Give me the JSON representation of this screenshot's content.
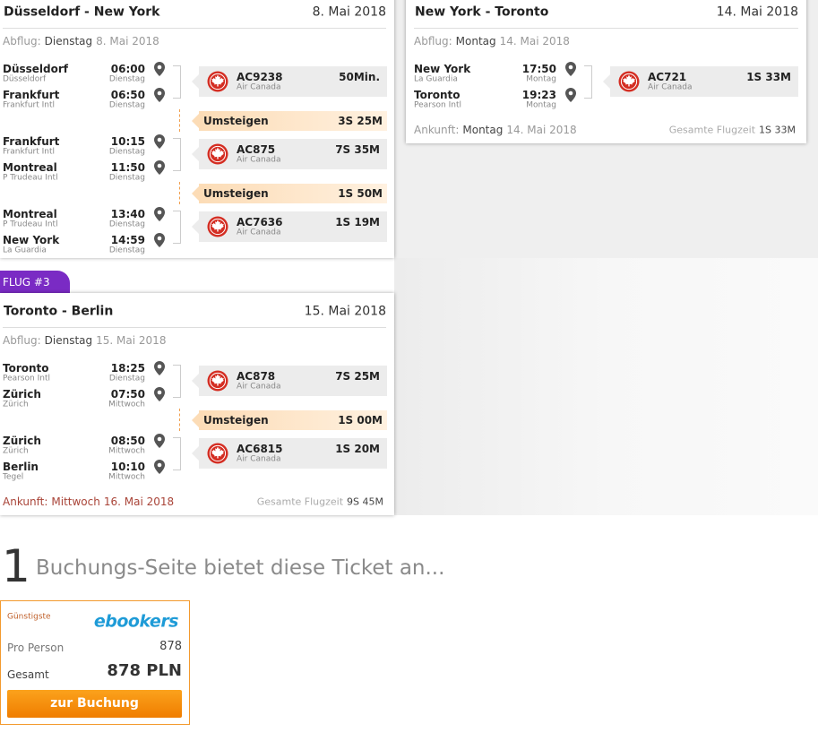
{
  "flights": [
    {
      "title": "Düsseldorf - New York",
      "date": "8. Mai 2018",
      "departure": {
        "label": "Abflug:",
        "day": "Dienstag",
        "date": "8. Mai 2018"
      },
      "legs": [
        {
          "from": {
            "city": "Düsseldorf",
            "airport": "Düsseldorf",
            "time": "06:00",
            "day": "Dienstag"
          },
          "to": {
            "city": "Frankfurt",
            "airport": "Frankfurt Intl",
            "time": "06:50",
            "day": "Dienstag"
          },
          "flight": {
            "code": "AC9238",
            "airline": "Air Canada",
            "duration": "50Min."
          }
        },
        {
          "from": {
            "city": "Frankfurt",
            "airport": "Frankfurt Intl",
            "time": "10:15",
            "day": "Dienstag"
          },
          "to": {
            "city": "Montreal",
            "airport": "P Trudeau Intl",
            "time": "11:50",
            "day": "Dienstag"
          },
          "flight": {
            "code": "AC875",
            "airline": "Air Canada",
            "duration": "7S 35M"
          }
        },
        {
          "from": {
            "city": "Montreal",
            "airport": "P Trudeau Intl",
            "time": "13:40",
            "day": "Dienstag"
          },
          "to": {
            "city": "New York",
            "airport": "La Guardia",
            "time": "14:59",
            "day": "Dienstag"
          },
          "flight": {
            "code": "AC7636",
            "airline": "Air Canada",
            "duration": "1S 19M"
          }
        }
      ],
      "transfers": [
        {
          "label": "Umsteigen",
          "duration": "3S 25M"
        },
        {
          "label": "Umsteigen",
          "duration": "1S 50M"
        }
      ]
    },
    {
      "title": "New York - Toronto",
      "date": "14. Mai 2018",
      "departure": {
        "label": "Abflug:",
        "day": "Montag",
        "date": "14. Mai 2018"
      },
      "legs": [
        {
          "from": {
            "city": "New York",
            "airport": "La Guardia",
            "time": "17:50",
            "day": "Montag"
          },
          "to": {
            "city": "Toronto",
            "airport": "Pearson Intl",
            "time": "19:23",
            "day": "Montag"
          },
          "flight": {
            "code": "AC721",
            "airline": "Air Canada",
            "duration": "1S 33M"
          }
        }
      ],
      "transfers": [],
      "arrival": {
        "label": "Ankunft:",
        "day": "Montag",
        "date": "14. Mai 2018"
      },
      "total": {
        "label": "Gesamte Flugzeit",
        "value": "1S 33M"
      }
    },
    {
      "badge": "FLUG #3",
      "title": "Toronto - Berlin",
      "date": "15. Mai 2018",
      "departure": {
        "label": "Abflug:",
        "day": "Dienstag",
        "date": "15. Mai 2018"
      },
      "legs": [
        {
          "from": {
            "city": "Toronto",
            "airport": "Pearson Intl",
            "time": "18:25",
            "day": "Dienstag"
          },
          "to": {
            "city": "Zürich",
            "airport": "Zürich",
            "time": "07:50",
            "day": "Mittwoch"
          },
          "flight": {
            "code": "AC878",
            "airline": "Air Canada",
            "duration": "7S 25M"
          }
        },
        {
          "from": {
            "city": "Zürich",
            "airport": "Zürich",
            "time": "08:50",
            "day": "Mittwoch"
          },
          "to": {
            "city": "Berlin",
            "airport": "Tegel",
            "time": "10:10",
            "day": "Mittwoch"
          },
          "flight": {
            "code": "AC6815",
            "airline": "Air Canada",
            "duration": "1S 20M"
          }
        }
      ],
      "transfers": [
        {
          "label": "Umsteigen",
          "duration": "1S 00M"
        }
      ],
      "arrival": {
        "label": "Ankunft:",
        "day": "Mittwoch",
        "date": "16. Mai 2018"
      },
      "total": {
        "label": "Gesamte Flugzeit",
        "value": "9S 45M"
      }
    }
  ],
  "booking": {
    "count": "1",
    "heading": "Buchungs-Seite bietet diese Ticket an...",
    "offer": {
      "badge": "Günstigste",
      "provider": "ebookers",
      "per_person_label": "Pro Person",
      "per_person": "878",
      "total_label": "Gesamt",
      "total": "878 PLN",
      "button": "zur Buchung"
    }
  }
}
